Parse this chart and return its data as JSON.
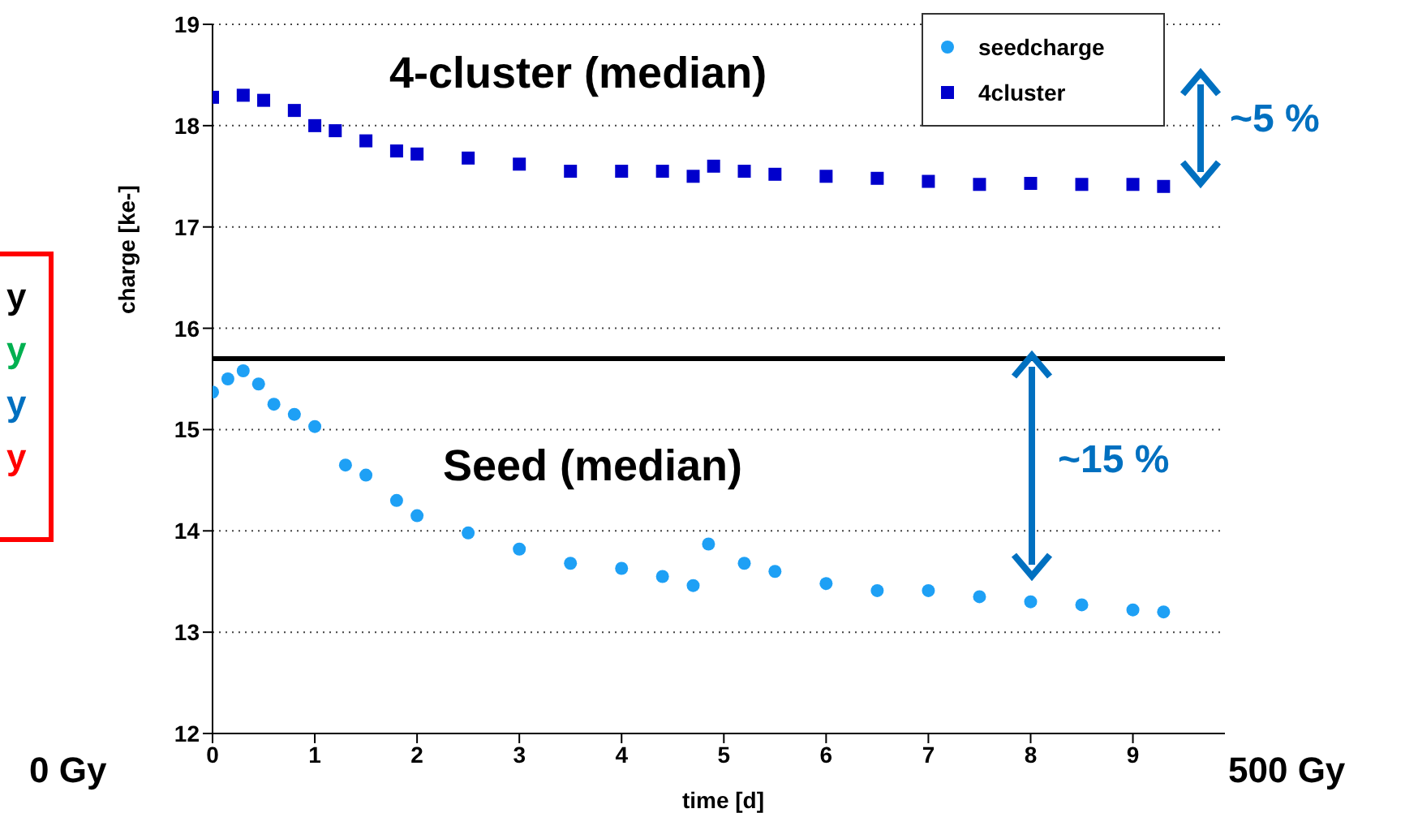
{
  "chart_data": {
    "type": "scatter",
    "xlabel": "time [d]",
    "ylabel": "charge [ke-]",
    "xlim": [
      0,
      9.9
    ],
    "xticks": [
      0,
      1,
      2,
      3,
      4,
      5,
      6,
      7,
      8,
      9
    ],
    "ylim": [
      12,
      19
    ],
    "yticks": [
      12,
      13,
      14,
      15,
      16,
      17,
      18,
      19
    ],
    "grid": "y",
    "legend": "top right",
    "ref_lines": [
      {
        "axis": "y",
        "value": 15.7,
        "color": "#000000"
      }
    ],
    "annotations": [
      "4-cluster (median)",
      "Seed (median)",
      "~5 %",
      "~15 %",
      "0 Gy",
      "500 Gy",
      "y",
      "y",
      "y",
      "y"
    ],
    "series": [
      {
        "name": "seedcharge",
        "color": "#1ea0f5",
        "marker": "circle",
        "x": [
          0,
          0.15,
          0.3,
          0.45,
          0.6,
          0.8,
          1.0,
          1.3,
          1.5,
          1.8,
          2.0,
          2.5,
          3.0,
          3.5,
          4.0,
          4.4,
          4.7,
          4.85,
          5.2,
          5.5,
          6.0,
          6.5,
          7.0,
          7.5,
          8.0,
          8.5,
          9.0,
          9.3
        ],
        "values": [
          15.37,
          15.5,
          15.58,
          15.45,
          15.25,
          15.15,
          15.03,
          14.65,
          14.55,
          14.3,
          14.15,
          13.98,
          13.82,
          13.68,
          13.63,
          13.55,
          13.46,
          13.87,
          13.68,
          13.6,
          13.48,
          13.41,
          13.41,
          13.35,
          13.3,
          13.27,
          13.22,
          13.2
        ]
      },
      {
        "name": "4cluster",
        "color": "#0000cc",
        "marker": "square",
        "x": [
          0,
          0.3,
          0.5,
          0.8,
          1.0,
          1.2,
          1.5,
          1.8,
          2.0,
          2.5,
          3.0,
          3.5,
          4.0,
          4.4,
          4.7,
          4.9,
          5.2,
          5.5,
          6.0,
          6.5,
          7.0,
          7.5,
          8.0,
          8.5,
          9.0,
          9.3
        ],
        "values": [
          18.28,
          18.3,
          18.25,
          18.15,
          18.0,
          17.95,
          17.85,
          17.75,
          17.72,
          17.68,
          17.62,
          17.55,
          17.55,
          17.55,
          17.5,
          17.6,
          17.55,
          17.52,
          17.5,
          17.48,
          17.45,
          17.42,
          17.43,
          17.42,
          17.42,
          17.4
        ]
      }
    ]
  }
}
